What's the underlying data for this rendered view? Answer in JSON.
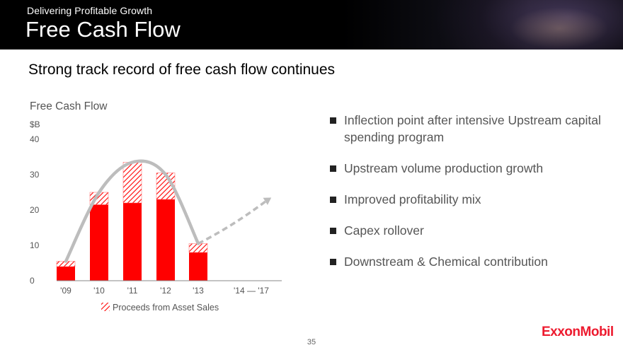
{
  "header": {
    "supertitle": "Delivering Profitable Growth",
    "title": "Free Cash Flow"
  },
  "subtitle": "Strong track record of free cash flow continues",
  "bullets": [
    "Inflection point after intensive Upstream capital spending program",
    "Upstream volume production growth",
    "Improved profitability mix",
    "Capex rollover",
    "Downstream & Chemical contribution"
  ],
  "logo_text": "ExxonMobil",
  "page_number": "35",
  "colors": {
    "bar": "#ff0000",
    "trend": "#bdbdbd",
    "header_bg": "#000000",
    "logo": "#ed1b2f"
  },
  "chart_data": {
    "type": "bar",
    "title": "Free Cash Flow",
    "ylabel": "$B",
    "ylim": [
      0,
      40
    ],
    "yticks": [
      0,
      10,
      20,
      30,
      40
    ],
    "categories": [
      "'09",
      "'10",
      "'11",
      "'12",
      "'13",
      "'14 — '17"
    ],
    "series": [
      {
        "name": "",
        "values": [
          4,
          21.5,
          22,
          23,
          8,
          null
        ]
      },
      {
        "name": "Proceeds from Asset Sales",
        "values": [
          1.5,
          3.5,
          11.5,
          7.5,
          2.5,
          null
        ]
      }
    ],
    "trend_solid": [
      [
        0,
        5.5
      ],
      [
        1,
        25
      ],
      [
        2,
        33.5
      ],
      [
        3,
        30
      ],
      [
        4,
        10.5
      ]
    ],
    "trend_projection": [
      [
        4,
        10.5
      ],
      [
        5.6,
        23.5
      ]
    ],
    "legend": "bottom"
  }
}
